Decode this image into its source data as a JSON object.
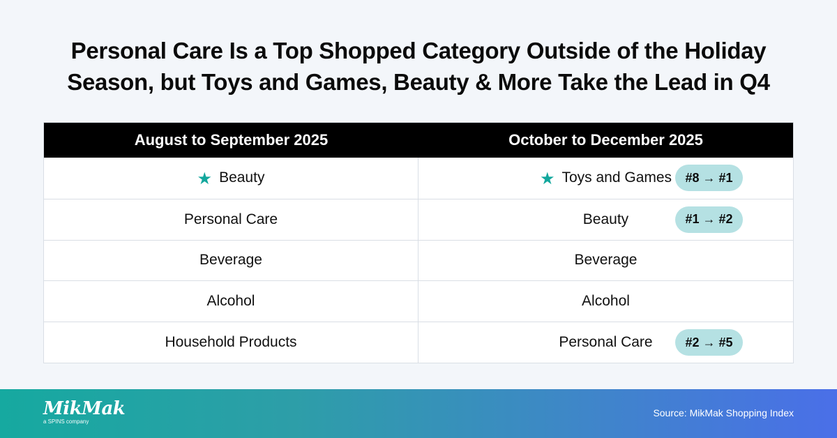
{
  "title_lines": [
    "Personal Care Is a Top Shopped Category Outside of the Holiday",
    "Season, but Toys and Games, Beauty & More Take the Lead in Q4"
  ],
  "chart_data": {
    "type": "table",
    "columns": [
      "August to September 2025",
      "October to December 2025"
    ],
    "rows": [
      {
        "left": "Beauty",
        "left_star": true,
        "right": "Toys and Games",
        "right_star": true,
        "change": "#8 → #1"
      },
      {
        "left": "Personal Care",
        "left_star": false,
        "right": "Beauty",
        "right_star": false,
        "change": "#1 → #2"
      },
      {
        "left": "Beverage",
        "left_star": false,
        "right": "Beverage",
        "right_star": false,
        "change": ""
      },
      {
        "left": "Alcohol",
        "left_star": false,
        "right": "Alcohol",
        "right_star": false,
        "change": ""
      },
      {
        "left": "Household Products",
        "left_star": false,
        "right": "Personal Care",
        "right_star": false,
        "change": "#2 → #5"
      }
    ],
    "accent_color": "#12a79d",
    "badge_color": "#b5e1e3",
    "header_color": "#000000"
  },
  "footer": {
    "logo_text": "MikMak",
    "logo_subtext": "a SPINS company",
    "source": "Source: MikMak Shopping Index"
  }
}
